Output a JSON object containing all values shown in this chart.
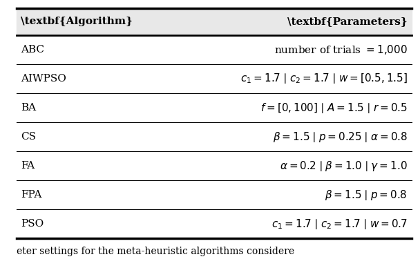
{
  "col_headers": [
    "Algorithm",
    "Parameters"
  ],
  "rows": [
    [
      "ABC",
      "number of trials $= 1{,}000$"
    ],
    [
      "AIWPSO",
      "$c_1 = 1.7 \\mid c_2 = 1.7 \\mid w = [0.5, 1.5]$"
    ],
    [
      "BA",
      "$f = [0, 100] \\mid A = 1.5 \\mid r = 0.5$"
    ],
    [
      "CS",
      "$\\beta = 1.5 \\mid p = 0.25 \\mid \\alpha = 0.8$"
    ],
    [
      "FA",
      "$\\alpha = 0.2 \\mid \\beta = 1.0 \\mid \\gamma = 1.0$"
    ],
    [
      "FPA",
      "$\\beta = 1.5 \\mid p = 0.8$"
    ],
    [
      "PSO",
      "$c_1 = 1.7 \\mid c_2 = 1.7 \\mid w = 0.7$"
    ]
  ],
  "caption": "eter settings for the meta-heuristic algorithms considere",
  "background_color": "#ffffff",
  "header_bold": true,
  "fontsize": 11,
  "caption_fontsize": 10
}
